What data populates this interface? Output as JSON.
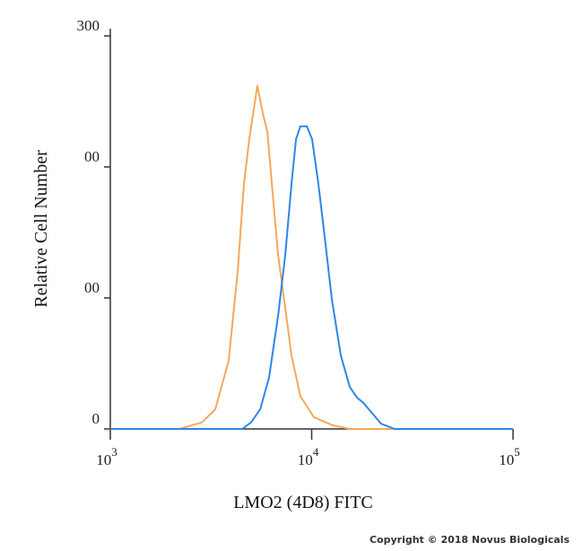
{
  "chart_data": {
    "type": "line",
    "ylabel": "Relative Cell Number",
    "xlabel": "LMO2 (4D8) FITC",
    "copyright": "Copyright © 2018 Novus Biologicals",
    "xscale": "log",
    "xlim": [
      1000,
      100000
    ],
    "xticks": [
      {
        "value": 1000,
        "label": "10",
        "exponent": "3"
      },
      {
        "value": 10000,
        "label": "10",
        "exponent": "4"
      },
      {
        "value": 100000,
        "label": "10",
        "exponent": "5"
      }
    ],
    "ylim": [
      0,
      300
    ],
    "yticks": [
      {
        "value": 0,
        "label": "0"
      },
      {
        "value": 100,
        "label": "00"
      },
      {
        "value": 200,
        "label": "00"
      },
      300
    ],
    "series": [
      {
        "color": "#f5a85a",
        "x": [
          1000,
          2200,
          2850,
          3320,
          3870,
          4290,
          4610,
          4900,
          5370,
          5715,
          6023,
          6339,
          6808,
          7396,
          7943,
          8790,
          10260,
          12590,
          15460,
          100000
        ],
        "values": [
          0,
          0,
          5,
          15,
          52,
          120,
          187,
          221,
          262,
          241,
          227,
          187,
          133,
          92,
          56,
          25,
          9,
          3,
          0,
          0
        ]
      },
      {
        "color": "#2f86e8",
        "x": [
          1000,
          4520,
          5000,
          5550,
          6140,
          6810,
          7400,
          7940,
          8360,
          8790,
          9460,
          10050,
          10800,
          11610,
          12590,
          13960,
          15460,
          16790,
          18030,
          19990,
          22130,
          25820,
          100000
        ],
        "values": [
          0,
          0,
          5,
          15,
          39,
          86,
          133,
          187,
          221,
          231,
          231,
          221,
          187,
          146,
          99,
          56,
          32,
          24,
          20,
          12,
          4,
          0,
          0
        ]
      }
    ]
  }
}
